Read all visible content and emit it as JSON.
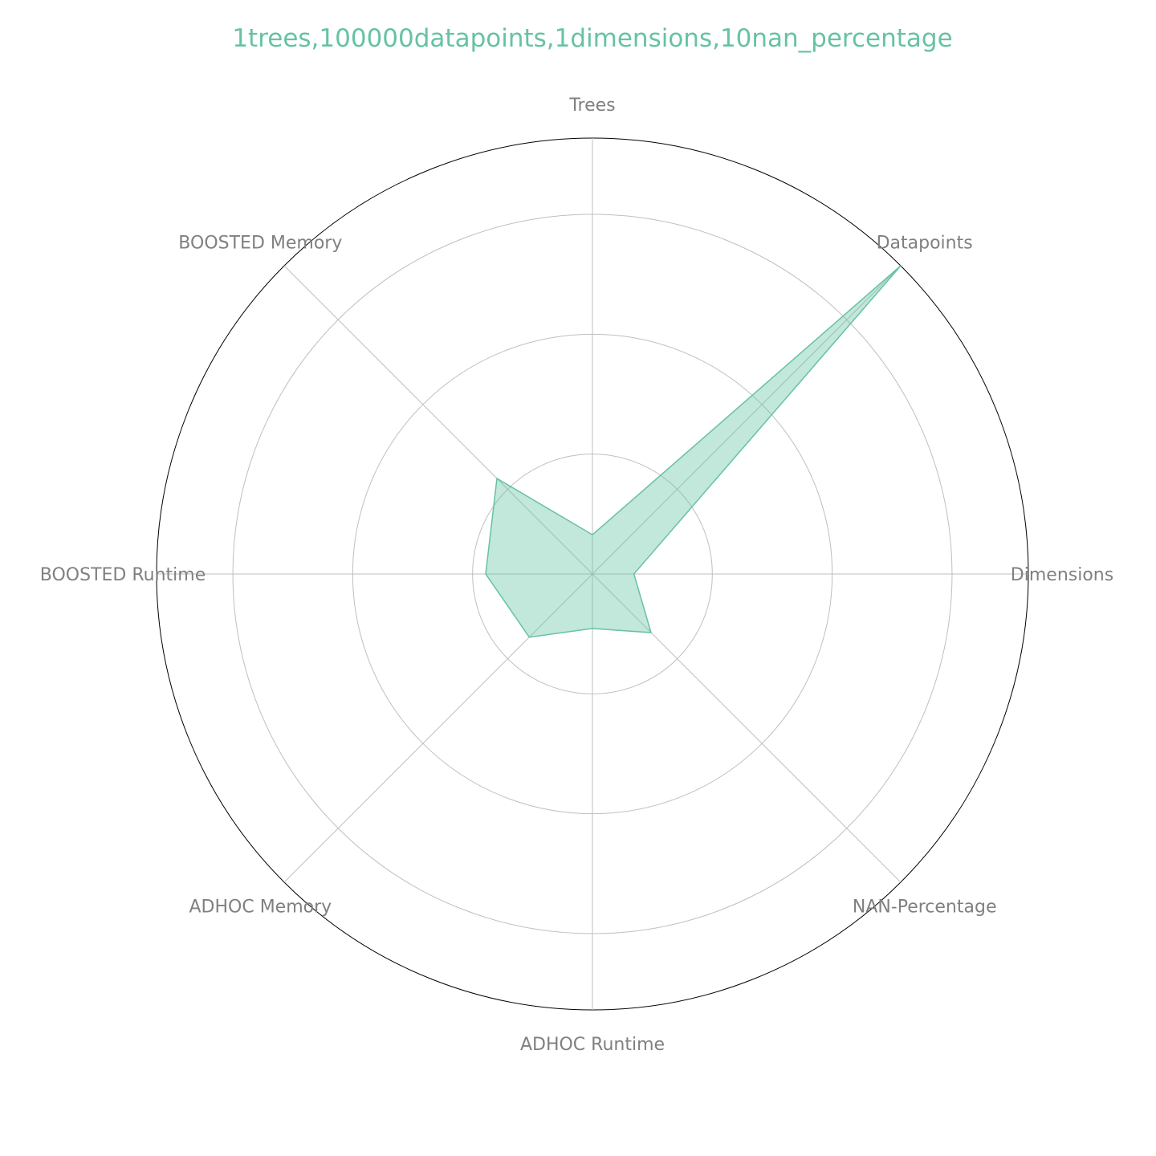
{
  "chart_data": {
    "type": "radar",
    "title": "1trees,100000datapoints,1dimensions,10nan_percentage",
    "axes": [
      "Trees",
      "Datapoints",
      "Dimensions",
      "NAN-Percentage",
      "ADHOC Runtime",
      "ADHOC Memory",
      "BOOSTED Runtime",
      "BOOSTED Memory"
    ],
    "series": [
      {
        "values": [
          0.09,
          1.0,
          0.095,
          0.19,
          0.125,
          0.205,
          0.245,
          0.31
        ]
      }
    ],
    "rlim": [
      0,
      1
    ],
    "rgrid": [
      0.275,
      0.55,
      0.825,
      1.0
    ],
    "grid": true,
    "color": "#66c2a5",
    "fill_opacity": 0.4
  }
}
